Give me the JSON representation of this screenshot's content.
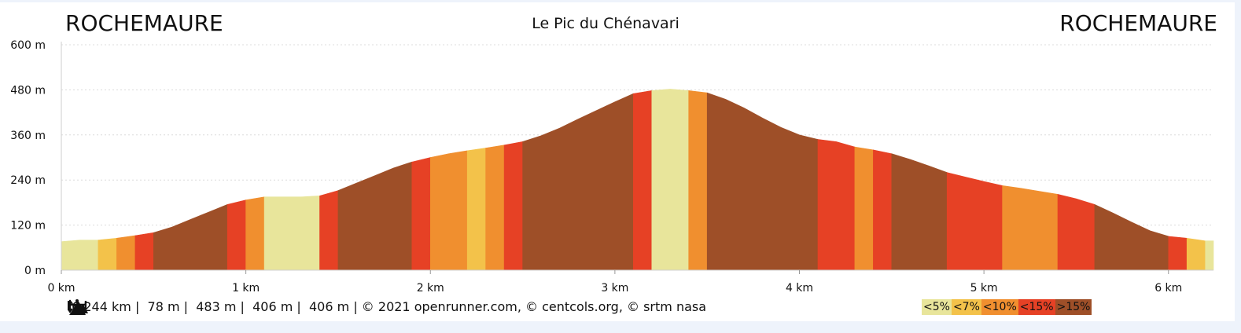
{
  "start_place": "ROCHEMAURE",
  "end_place": "ROCHEMAURE",
  "colors": {
    "lt5": "#e8e59b",
    "lt7": "#f3c24a",
    "lt10": "#f08f2f",
    "lt15": "#e64125",
    "gt15": "#9e4f28"
  },
  "footer": {
    "distance": "6.244 km",
    "min_alt": "78 m",
    "max_alt": "483 m",
    "ascent": "406 m",
    "descent": "406 m",
    "credits": "© 2021 openrunner.com, © centcols.org, © srtm nasa"
  },
  "legend": [
    {
      "label": "<5%",
      "class": "lt5"
    },
    {
      "label": "<7%",
      "class": "lt7"
    },
    {
      "label": "<10%",
      "class": "lt10"
    },
    {
      "label": "<15%",
      "class": "lt15"
    },
    {
      "label": ">15%",
      "class": "gt15"
    }
  ],
  "chart_data": {
    "type": "area",
    "title": "Le Pic du Chénavari",
    "x_unit": "km",
    "y_unit": "m",
    "xlim": [
      0,
      6.244
    ],
    "ylim": [
      0,
      600
    ],
    "x_ticks": [
      0,
      1,
      2,
      3,
      4,
      5,
      6
    ],
    "y_ticks": [
      0,
      120,
      240,
      360,
      480,
      600
    ],
    "x_tick_labels": [
      "0 km",
      "1 km",
      "2 km",
      "3 km",
      "4 km",
      "5 km",
      "6 km"
    ],
    "y_tick_labels": [
      "0 m",
      "120 m",
      "240 m",
      "360 m",
      "480 m",
      "600 m"
    ],
    "grid": true,
    "profile": [
      [
        0,
        76
      ],
      [
        0.1,
        80
      ],
      [
        0.2,
        80
      ],
      [
        0.3,
        85
      ],
      [
        0.4,
        92
      ],
      [
        0.5,
        100
      ],
      [
        0.6,
        115
      ],
      [
        0.7,
        135
      ],
      [
        0.8,
        155
      ],
      [
        0.9,
        175
      ],
      [
        1.0,
        187
      ],
      [
        1.1,
        195
      ],
      [
        1.2,
        195
      ],
      [
        1.3,
        195
      ],
      [
        1.4,
        198
      ],
      [
        1.5,
        212
      ],
      [
        1.6,
        232
      ],
      [
        1.7,
        252
      ],
      [
        1.8,
        272
      ],
      [
        1.9,
        288
      ],
      [
        2.0,
        300
      ],
      [
        2.1,
        310
      ],
      [
        2.2,
        318
      ],
      [
        2.3,
        325
      ],
      [
        2.4,
        333
      ],
      [
        2.5,
        342
      ],
      [
        2.6,
        358
      ],
      [
        2.7,
        378
      ],
      [
        2.8,
        402
      ],
      [
        2.9,
        425
      ],
      [
        3.0,
        448
      ],
      [
        3.1,
        470
      ],
      [
        3.2,
        478
      ],
      [
        3.3,
        482
      ],
      [
        3.4,
        478
      ],
      [
        3.5,
        472
      ],
      [
        3.6,
        455
      ],
      [
        3.7,
        432
      ],
      [
        3.8,
        405
      ],
      [
        3.9,
        380
      ],
      [
        4.0,
        360
      ],
      [
        4.1,
        348
      ],
      [
        4.2,
        342
      ],
      [
        4.3,
        328
      ],
      [
        4.4,
        320
      ],
      [
        4.5,
        310
      ],
      [
        4.6,
        295
      ],
      [
        4.7,
        278
      ],
      [
        4.8,
        260
      ],
      [
        4.9,
        248
      ],
      [
        5.0,
        236
      ],
      [
        5.1,
        225
      ],
      [
        5.2,
        218
      ],
      [
        5.3,
        210
      ],
      [
        5.4,
        202
      ],
      [
        5.5,
        190
      ],
      [
        5.6,
        175
      ],
      [
        5.7,
        152
      ],
      [
        5.8,
        128
      ],
      [
        5.9,
        105
      ],
      [
        6.0,
        90
      ],
      [
        6.1,
        85
      ],
      [
        6.2,
        78
      ],
      [
        6.244,
        78
      ]
    ],
    "segments": [
      {
        "from": 0,
        "to": 0.2,
        "class": "lt5"
      },
      {
        "from": 0.2,
        "to": 0.3,
        "class": "lt7"
      },
      {
        "from": 0.3,
        "to": 0.4,
        "class": "lt10"
      },
      {
        "from": 0.4,
        "to": 0.5,
        "class": "lt15"
      },
      {
        "from": 0.5,
        "to": 0.9,
        "class": "gt15"
      },
      {
        "from": 0.9,
        "to": 1.0,
        "class": "lt15"
      },
      {
        "from": 1.0,
        "to": 1.1,
        "class": "lt10"
      },
      {
        "from": 1.1,
        "to": 1.4,
        "class": "lt5"
      },
      {
        "from": 1.4,
        "to": 1.5,
        "class": "lt15"
      },
      {
        "from": 1.5,
        "to": 1.9,
        "class": "gt15"
      },
      {
        "from": 1.9,
        "to": 2.0,
        "class": "lt15"
      },
      {
        "from": 2.0,
        "to": 2.2,
        "class": "lt10"
      },
      {
        "from": 2.2,
        "to": 2.3,
        "class": "lt7"
      },
      {
        "from": 2.3,
        "to": 2.4,
        "class": "lt10"
      },
      {
        "from": 2.4,
        "to": 2.5,
        "class": "lt15"
      },
      {
        "from": 2.5,
        "to": 3.1,
        "class": "gt15"
      },
      {
        "from": 3.1,
        "to": 3.2,
        "class": "lt15"
      },
      {
        "from": 3.2,
        "to": 3.4,
        "class": "lt5"
      },
      {
        "from": 3.4,
        "to": 3.5,
        "class": "lt10"
      },
      {
        "from": 3.5,
        "to": 4.1,
        "class": "gt15"
      },
      {
        "from": 4.1,
        "to": 4.3,
        "class": "lt15"
      },
      {
        "from": 4.3,
        "to": 4.4,
        "class": "lt10"
      },
      {
        "from": 4.4,
        "to": 4.5,
        "class": "lt15"
      },
      {
        "from": 4.5,
        "to": 4.8,
        "class": "gt15"
      },
      {
        "from": 4.8,
        "to": 5.1,
        "class": "lt15"
      },
      {
        "from": 5.1,
        "to": 5.4,
        "class": "lt10"
      },
      {
        "from": 5.4,
        "to": 5.6,
        "class": "lt15"
      },
      {
        "from": 5.6,
        "to": 6.0,
        "class": "gt15"
      },
      {
        "from": 6.0,
        "to": 6.1,
        "class": "lt15"
      },
      {
        "from": 6.1,
        "to": 6.2,
        "class": "lt7"
      },
      {
        "from": 6.2,
        "to": 6.244,
        "class": "lt5"
      }
    ]
  }
}
